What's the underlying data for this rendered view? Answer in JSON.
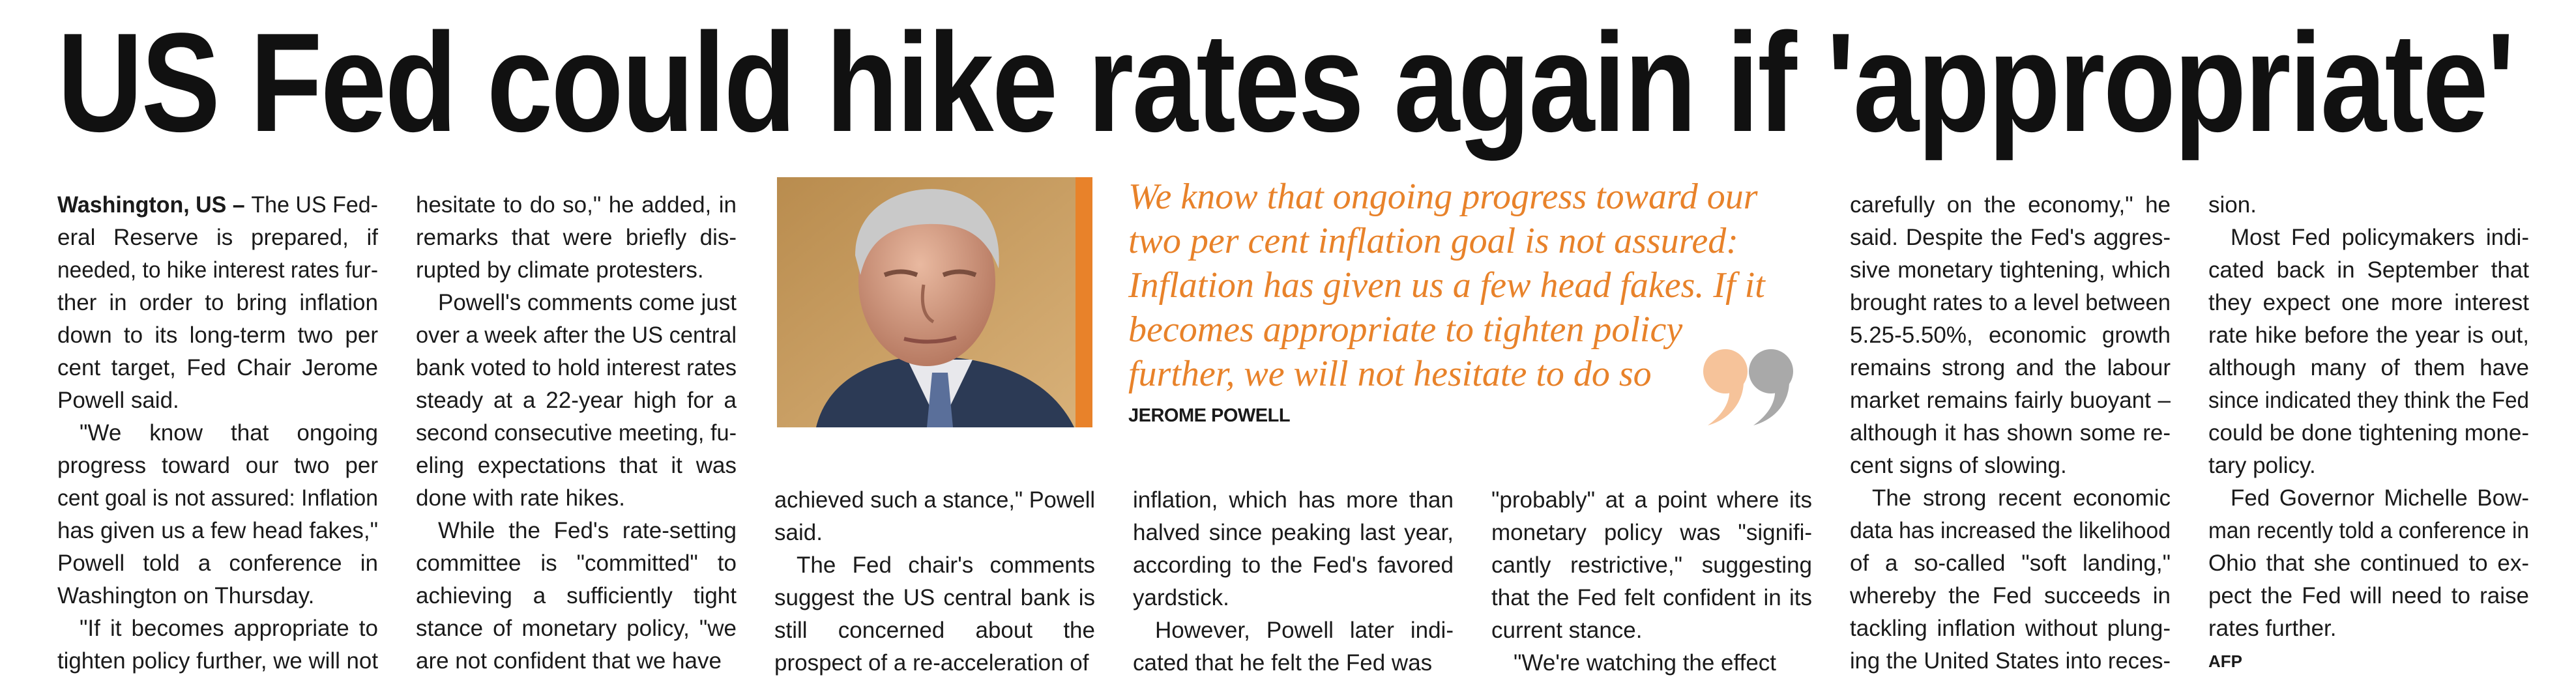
{
  "headline": "US Fed could hike rates again if 'appropriate'",
  "dateline": "Washington, US –",
  "columns": [
    {
      "paragraphs": [
        {
          "lines": [
            "The US Fed-",
            "eral Reserve is prepared, if",
            "needed, to hike interest rates fur-",
            "ther in order to bring inflation",
            "down to its long-term two per",
            "cent target, Fed Chair Jerome",
            "Powell said."
          ]
        },
        {
          "lines": [
            "\"We know that ongoing",
            "progress toward our two per",
            "cent goal is not assured: Inflation",
            "has given us a few head fakes,\"",
            "Powell told a conference in",
            "Washington on Thursday."
          ]
        },
        {
          "lines": [
            "\"If it becomes appropriate to",
            "tighten policy further, we will not"
          ]
        }
      ]
    },
    {
      "paragraphs": [
        {
          "lines": [
            "hesitate to do so,\" he added, in",
            "remarks that were briefly dis-",
            "rupted by climate protesters."
          ]
        },
        {
          "lines": [
            "Powell's comments come just",
            "over a week after the US central",
            "bank voted to hold interest rates",
            "steady at a 22-year high for a",
            "second consecutive meeting, fu-",
            "eling expectations that it was",
            "done with rate hikes."
          ]
        },
        {
          "lines": [
            "While the Fed's rate-setting",
            "committee is \"committed\" to",
            "achieving a sufficiently tight",
            "stance of monetary policy, \"we",
            "are not confident that we have"
          ]
        }
      ]
    },
    {
      "paragraphs": [
        {
          "lines": [
            "achieved such a stance,\" Powell",
            "said."
          ]
        },
        {
          "lines": [
            "The Fed chair's comments",
            "suggest the US central bank is",
            "still concerned about the",
            "prospect of a re-acceleration of"
          ]
        }
      ]
    },
    {
      "paragraphs": [
        {
          "lines": [
            "inflation, which has more than",
            "halved since peaking last year,",
            "according to the Fed's favored",
            "yardstick."
          ]
        },
        {
          "lines": [
            "However, Powell later indi-",
            "cated that he felt the Fed was"
          ]
        }
      ]
    },
    {
      "paragraphs": [
        {
          "lines": [
            "\"probably\" at a point where its",
            "monetary policy was \"signifi-",
            "cantly restrictive,\" suggesting",
            "that the Fed felt confident in its",
            "current stance."
          ]
        },
        {
          "lines": [
            "\"We're watching the effect"
          ]
        }
      ]
    },
    {
      "paragraphs": [
        {
          "lines": [
            "carefully on the economy,\" he",
            "said. Despite the Fed's aggres-",
            "sive monetary tightening, which",
            "brought rates to a level between",
            "5.25-5.50%, economic growth",
            "remains strong and the labour",
            "market remains fairly buoyant –",
            "although it has shown some re-",
            "cent signs of slowing."
          ]
        },
        {
          "lines": [
            "The strong recent economic",
            "data has increased the likelihood",
            "of a so-called \"soft landing,\"",
            "whereby the Fed succeeds in",
            "tackling inflation without plung-",
            "ing the United States into reces-"
          ]
        }
      ]
    },
    {
      "paragraphs": [
        {
          "lines": [
            "sion."
          ]
        },
        {
          "lines": [
            "Most Fed policymakers indi-",
            "cated back in September that",
            "they expect one more interest",
            "rate hike before the year is out,",
            "although many of them have",
            "since indicated they think the Fed",
            "could be done tightening mone-",
            "tary policy."
          ]
        },
        {
          "lines": [
            "Fed Governor Michelle Bow-",
            "man recently told a conference in",
            "Ohio that she continued to ex-",
            "pect the Fed will need to raise",
            "rates further."
          ]
        }
      ]
    }
  ],
  "credit": "AFP",
  "quote": {
    "lines": [
      "We know that ongoing progress toward our",
      "two per cent inflation goal is not assured:",
      "Inflation has given us a few head fakes. If it",
      "becomes appropriate to tighten policy",
      "further, we will not hesitate to do so"
    ],
    "attribution": "JEROME POWELL"
  }
}
